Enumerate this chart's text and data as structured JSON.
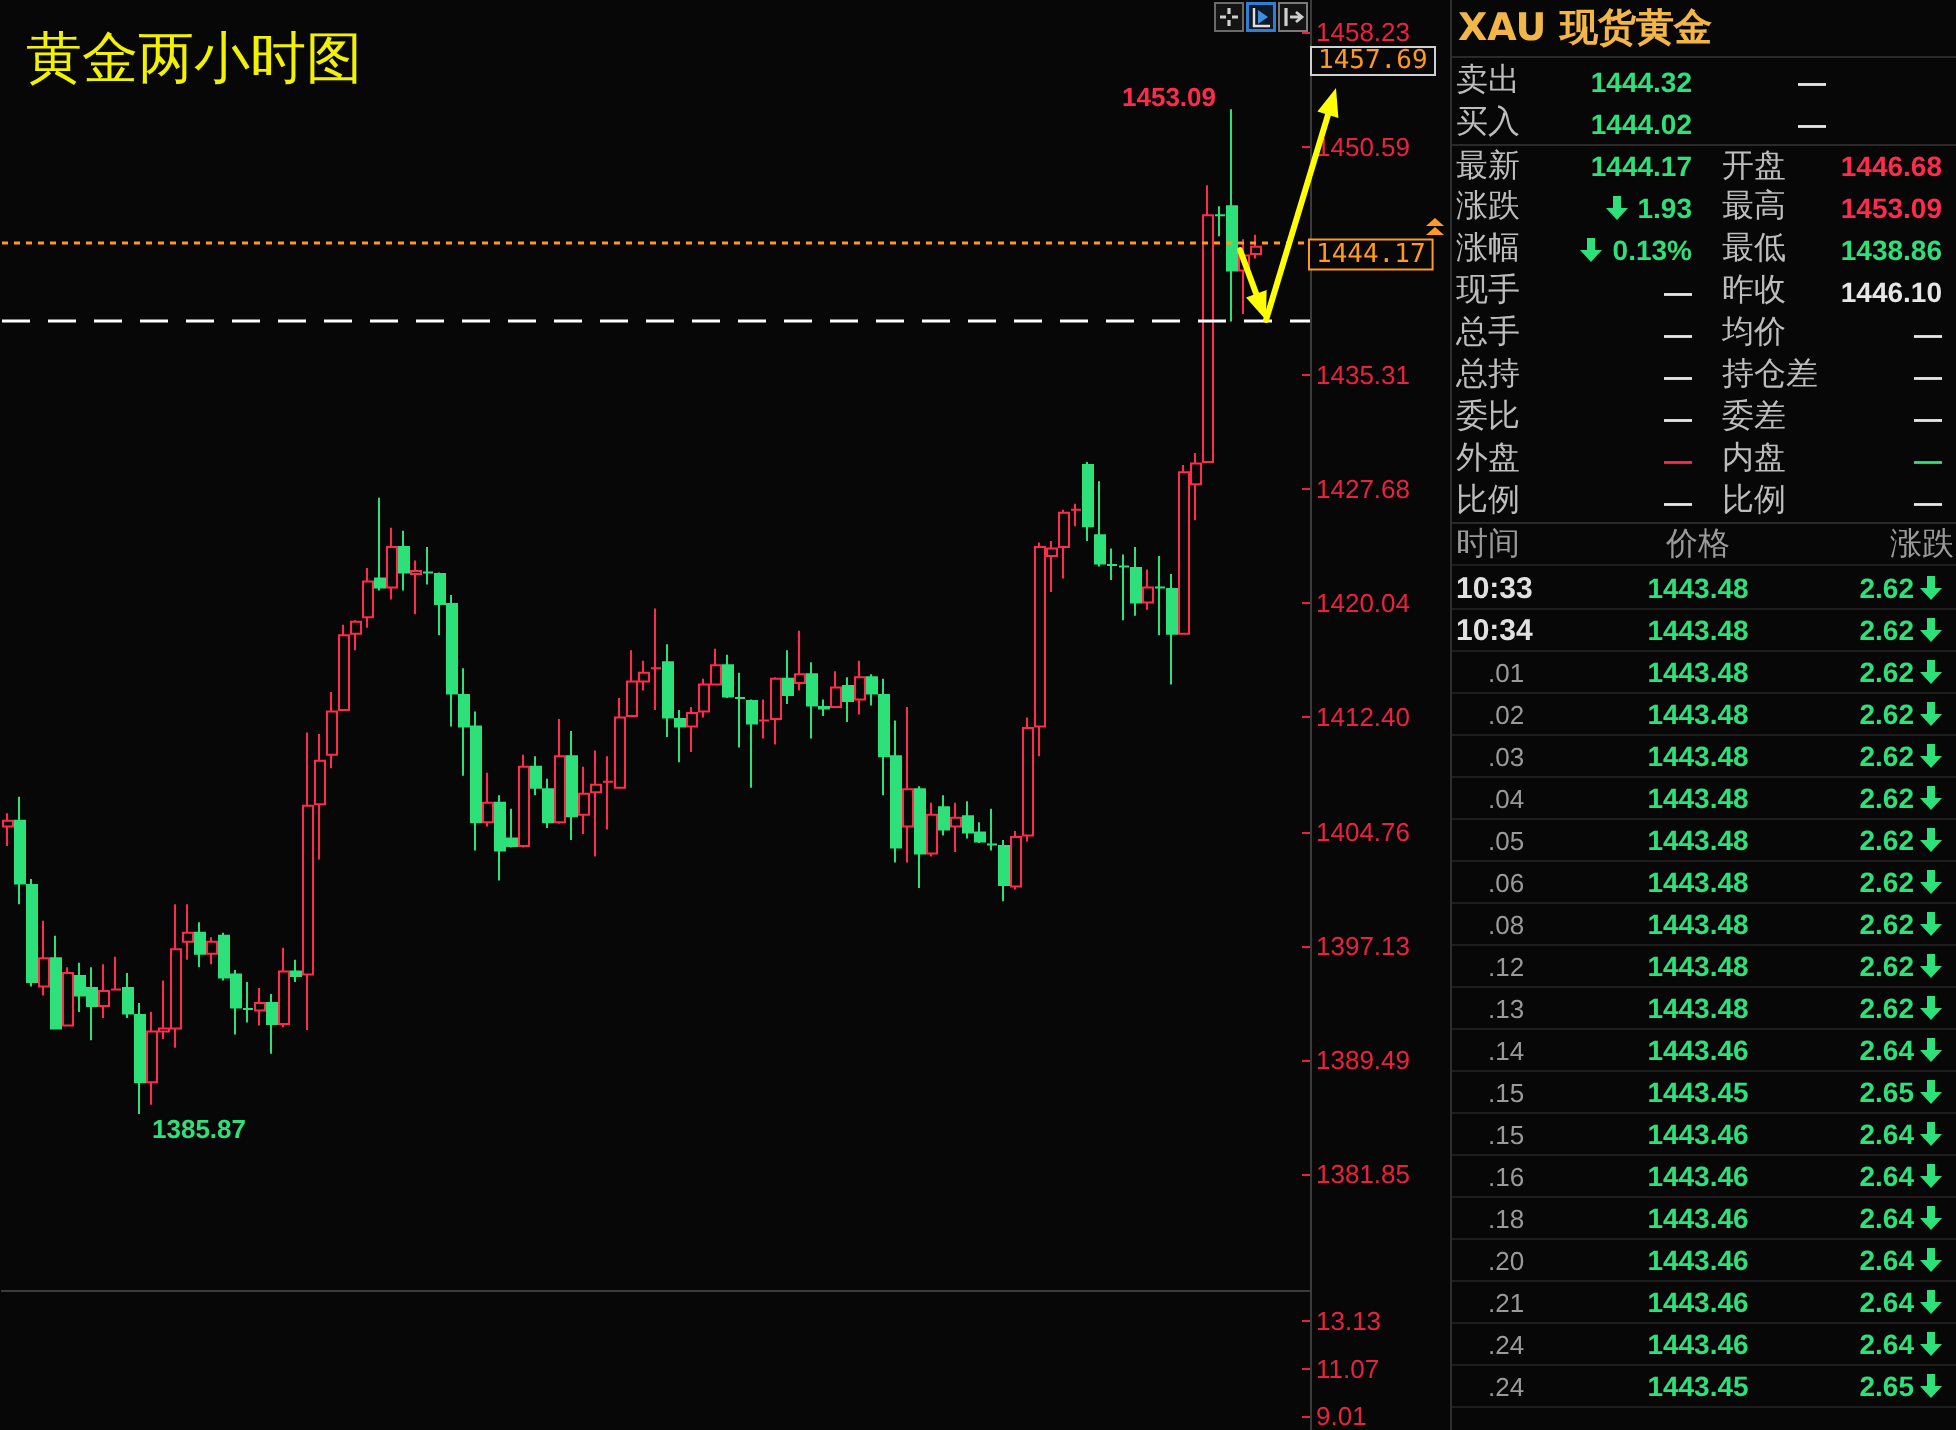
{
  "chart_data": [
    {
      "type": "candlestick",
      "title": "黄金两小时图",
      "tick_labels": "y",
      "categories": [
        null,
        null,
        null,
        null,
        null,
        null,
        null,
        null,
        null,
        null,
        null,
        null,
        null,
        null,
        null,
        null,
        null,
        null,
        null,
        null,
        null,
        null,
        null,
        null,
        null,
        null,
        null,
        null,
        null,
        null,
        null,
        null,
        null,
        null,
        null,
        null,
        null,
        null,
        null,
        null,
        null,
        null,
        null,
        null,
        null,
        null,
        null,
        null,
        null,
        null,
        null,
        null,
        null,
        null,
        null,
        null,
        null,
        null,
        null,
        null,
        null,
        null,
        null,
        null,
        null,
        null,
        null,
        null,
        null,
        null,
        null,
        null,
        null,
        null,
        null,
        null,
        null,
        null,
        null,
        null,
        null,
        null,
        null,
        null,
        null,
        null,
        null,
        null,
        null,
        null,
        null,
        null,
        null,
        null,
        null,
        null,
        null,
        null,
        null,
        null,
        null,
        null,
        null,
        null,
        null
      ],
      "ohlc": [
        [
          1405.1,
          1406.0,
          1403.8,
          1405.5
        ],
        [
          1405.5,
          1407.1,
          1399.9,
          1401.3
        ],
        [
          1401.2,
          1401.6,
          1394.4,
          1394.7
        ],
        [
          1394.4,
          1398.8,
          1393.8,
          1396.3
        ],
        [
          1396.3,
          1397.8,
          1391.6,
          1391.6
        ],
        [
          1391.8,
          1395.7,
          1391.8,
          1395.3
        ],
        [
          1395.1,
          1396.0,
          1392.7,
          1393.8
        ],
        [
          1394.3,
          1395.7,
          1390.8,
          1393.1
        ],
        [
          1393.1,
          1395.9,
          1392.3,
          1394.1
        ],
        [
          1394.2,
          1396.4,
          1394.2,
          1394.2
        ],
        [
          1394.3,
          1395.3,
          1392.3,
          1392.6
        ],
        [
          1392.5,
          1393.3,
          1385.87,
          1388.0
        ],
        [
          1388.0,
          1392.7,
          1386.5,
          1391.4
        ],
        [
          1391.4,
          1394.8,
          1390.9,
          1391.6
        ],
        [
          1391.6,
          1399.9,
          1390.3,
          1396.9
        ],
        [
          1397.4,
          1399.9,
          1396.2,
          1398.0
        ],
        [
          1398.0,
          1398.7,
          1395.7,
          1396.6
        ],
        [
          1396.6,
          1397.7,
          1395.9,
          1397.4
        ],
        [
          1397.8,
          1398.0,
          1394.8,
          1395.0
        ],
        [
          1395.2,
          1395.5,
          1391.2,
          1393.0
        ],
        [
          1392.9,
          1394.7,
          1392.0,
          1392.9
        ],
        [
          1392.8,
          1394.3,
          1391.8,
          1393.3
        ],
        [
          1393.3,
          1393.9,
          1389.9,
          1391.9
        ],
        [
          1391.9,
          1397.0,
          1391.7,
          1395.4
        ],
        [
          1395.4,
          1396.2,
          1394.7,
          1395.1
        ],
        [
          1395.2,
          1411.4,
          1391.5,
          1406.5
        ],
        [
          1406.6,
          1411.3,
          1402.9,
          1409.5
        ],
        [
          1409.9,
          1414.1,
          1409.0,
          1412.8
        ],
        [
          1412.9,
          1418.6,
          1412.9,
          1417.9
        ],
        [
          1418.0,
          1418.9,
          1416.9,
          1418.8
        ],
        [
          1419.1,
          1422.4,
          1418.4,
          1421.5
        ],
        [
          1421.7,
          1427.1,
          1420.9,
          1421.1
        ],
        [
          1421.1,
          1425.1,
          1420.3,
          1423.8
        ],
        [
          1423.8,
          1424.9,
          1420.9,
          1422.1
        ],
        [
          1422.0,
          1422.9,
          1419.3,
          1422.2
        ],
        [
          1422.1,
          1423.8,
          1421.3,
          1422.1
        ],
        [
          1422.0,
          1422.1,
          1417.9,
          1420.0
        ],
        [
          1420.0,
          1420.6,
          1411.8,
          1414.0
        ],
        [
          1413.9,
          1415.7,
          1408.5,
          1411.8
        ],
        [
          1411.8,
          1412.8,
          1403.5,
          1405.4
        ],
        [
          1405.4,
          1408.7,
          1405.1,
          1406.7
        ],
        [
          1406.7,
          1407.2,
          1401.5,
          1403.5
        ],
        [
          1404.3,
          1406.3,
          1403.7,
          1403.8
        ],
        [
          1403.8,
          1409.9,
          1403.7,
          1409.1
        ],
        [
          1409.1,
          1409.8,
          1407.2,
          1407.7
        ],
        [
          1407.6,
          1408.3,
          1405.0,
          1405.4
        ],
        [
          1405.4,
          1412.3,
          1405.3,
          1409.8
        ],
        [
          1409.8,
          1411.5,
          1404.2,
          1405.8
        ],
        [
          1405.9,
          1409.1,
          1404.6,
          1407.3
        ],
        [
          1407.4,
          1410.2,
          1403.1,
          1407.9
        ],
        [
          1408.1,
          1409.8,
          1404.9,
          1408.1
        ],
        [
          1407.7,
          1413.7,
          1407.7,
          1412.4
        ],
        [
          1412.5,
          1416.9,
          1412.5,
          1414.8
        ],
        [
          1414.8,
          1416.2,
          1414.2,
          1415.4
        ],
        [
          1415.7,
          1419.7,
          1412.9,
          1415.7
        ],
        [
          1416.1,
          1417.3,
          1411.1,
          1412.4
        ],
        [
          1412.3,
          1412.9,
          1409.4,
          1411.8
        ],
        [
          1411.8,
          1413.1,
          1410.1,
          1412.7
        ],
        [
          1412.8,
          1415.0,
          1412.4,
          1414.6
        ],
        [
          1414.6,
          1417.0,
          1414.6,
          1415.9
        ],
        [
          1415.9,
          1416.6,
          1413.7,
          1413.8
        ],
        [
          1413.7,
          1415.4,
          1410.4,
          1413.7
        ],
        [
          1413.5,
          1413.6,
          1407.7,
          1412.0
        ],
        [
          1412.2,
          1413.6,
          1411.0,
          1412.2
        ],
        [
          1412.3,
          1415.1,
          1410.6,
          1415.0
        ],
        [
          1415.0,
          1416.9,
          1413.3,
          1413.9
        ],
        [
          1414.7,
          1418.2,
          1414.2,
          1415.3
        ],
        [
          1415.3,
          1416.1,
          1411.0,
          1413.2
        ],
        [
          1413.1,
          1413.6,
          1412.5,
          1413.0
        ],
        [
          1413.1,
          1415.5,
          1413.1,
          1414.4
        ],
        [
          1414.5,
          1415.1,
          1412.1,
          1413.5
        ],
        [
          1413.6,
          1416.2,
          1412.6,
          1415.1
        ],
        [
          1415.1,
          1415.3,
          1413.2,
          1414.0
        ],
        [
          1413.9,
          1415.0,
          1407.2,
          1409.8
        ],
        [
          1409.8,
          1412.2,
          1402.7,
          1403.7
        ],
        [
          1405.1,
          1413.1,
          1402.7,
          1407.6
        ],
        [
          1407.6,
          1407.8,
          1401.0,
          1403.3
        ],
        [
          1403.3,
          1406.7,
          1403.1,
          1405.9
        ],
        [
          1406.4,
          1407.2,
          1404.5,
          1404.9
        ],
        [
          1405.1,
          1406.7,
          1403.4,
          1405.7
        ],
        [
          1405.8,
          1406.8,
          1404.3,
          1404.7
        ],
        [
          1404.7,
          1405.4,
          1404.0,
          1404.1
        ],
        [
          1403.9,
          1406.3,
          1403.5,
          1403.9
        ],
        [
          1403.8,
          1404.2,
          1400.1,
          1401.2
        ],
        [
          1401.1,
          1404.8,
          1400.9,
          1404.4
        ],
        [
          1404.5,
          1412.4,
          1404.1,
          1411.7
        ],
        [
          1411.8,
          1424.1,
          1409.8,
          1423.8
        ],
        [
          1423.2,
          1424.2,
          1420.8,
          1423.7
        ],
        [
          1423.8,
          1426.3,
          1421.7,
          1426.1
        ],
        [
          1426.3,
          1426.7,
          1425.2,
          1426.3
        ],
        [
          1429.3,
          1429.5,
          1424.2,
          1425.2
        ],
        [
          1424.6,
          1428.2,
          1422.5,
          1422.7
        ],
        [
          1422.6,
          1423.7,
          1421.6,
          1422.6
        ],
        [
          1422.5,
          1423.3,
          1418.9,
          1422.5
        ],
        [
          1422.4,
          1423.8,
          1419.2,
          1420.1
        ],
        [
          1420.1,
          1422.3,
          1419.6,
          1421.1
        ],
        [
          1421.1,
          1423.2,
          1417.9,
          1421.1
        ],
        [
          1421.0,
          1422.0,
          1414.6,
          1418.0
        ],
        [
          1418.0,
          1429.3,
          1418.0,
          1428.8
        ],
        [
          1428.0,
          1430.1,
          1425.6,
          1429.4
        ],
        [
          1429.5,
          1448.0,
          1429.5,
          1446.0
        ],
        [
          1446.0,
          1446.6,
          1444.6,
          1446.0
        ],
        [
          1446.6,
          1453.09,
          1438.9,
          1442.3
        ],
        [
          1442.3,
          1444.4,
          1439.4,
          1443.3
        ],
        [
          1443.4,
          1444.7,
          1443.1,
          1443.9
        ]
      ],
      "colors": [
        "#ff2a4d",
        "#2de07a",
        "#2de07a",
        "#ff2a4d",
        "#2de07a",
        "#ff2a4d",
        "#2de07a",
        "#2de07a",
        "#ff2a4d",
        "#ff2a4d",
        "#2de07a",
        "#2de07a",
        "#ff2a4d",
        "#ff2a4d",
        "#ff2a4d",
        "#ff2a4d",
        "#2de07a",
        "#ff2a4d",
        "#2de07a",
        "#2de07a",
        "#2de07a",
        "#ff2a4d",
        "#2de07a",
        "#ff2a4d",
        "#2de07a",
        "#ff2a4d",
        "#ff2a4d",
        "#ff2a4d",
        "#ff2a4d",
        "#ff2a4d",
        "#ff2a4d",
        "#2de07a",
        "#ff2a4d",
        "#2de07a",
        "#ff2a4d",
        "#2de07a",
        "#2de07a",
        "#2de07a",
        "#2de07a",
        "#2de07a",
        "#ff2a4d",
        "#2de07a",
        "#2de07a",
        "#ff2a4d",
        "#2de07a",
        "#2de07a",
        "#ff2a4d",
        "#2de07a",
        "#ff2a4d",
        "#ff2a4d",
        "#ff2a4d",
        "#ff2a4d",
        "#ff2a4d",
        "#ff2a4d",
        "#ff2a4d",
        "#2de07a",
        "#2de07a",
        "#ff2a4d",
        "#ff2a4d",
        "#ff2a4d",
        "#2de07a",
        "#2de07a",
        "#2de07a",
        "#ff2a4d",
        "#ff2a4d",
        "#2de07a",
        "#ff2a4d",
        "#2de07a",
        "#2de07a",
        "#ff2a4d",
        "#2de07a",
        "#ff2a4d",
        "#2de07a",
        "#2de07a",
        "#2de07a",
        "#ff2a4d",
        "#2de07a",
        "#ff2a4d",
        "#2de07a",
        "#ff2a4d",
        "#2de07a",
        "#2de07a",
        "#2de07a",
        "#2de07a",
        "#ff2a4d",
        "#ff2a4d",
        "#ff2a4d",
        "#ff2a4d",
        "#ff2a4d",
        "#ff2a4d",
        "#2de07a",
        "#2de07a",
        "#2de07a",
        "#2de07a",
        "#2de07a",
        "#ff2a4d",
        "#2de07a",
        "#2de07a",
        "#ff2a4d",
        "#ff2a4d",
        "#ff2a4d",
        "#2de07a",
        "#2de07a",
        "#ff2a4d",
        "#ff2a4d"
      ],
      "ylim": [
        1374.1,
        1460.4
      ],
      "yticks": [
        1381.85,
        1389.49,
        1397.13,
        1404.76,
        {
          "value": 1412.4,
          "label": "1412.40"
        },
        1420.04,
        1427.68,
        1435.31,
        1450.59,
        1458.23
      ],
      "ref_lines": [
        {
          "axis": "y",
          "value": 1444.17,
          "label": "1444.17",
          "color": "#ff9a1f",
          "line_style": "dotted"
        },
        {
          "axis": "y",
          "value": 1439.0,
          "color": "#ffffff",
          "line_style": "dashed"
        }
      ],
      "annotations": [
        "1457.69",
        "1453.09",
        "1385.87"
      ]
    },
    {
      "type": "bar",
      "tick_labels": "y",
      "categories": [
        null,
        null,
        null,
        null,
        null,
        null,
        null,
        null,
        null,
        null,
        null,
        null,
        null,
        null,
        null,
        null,
        null,
        null,
        null,
        null,
        null,
        null,
        null,
        null,
        null,
        null,
        null,
        null,
        null,
        null,
        null,
        null,
        null,
        null,
        null,
        null,
        null,
        null,
        null,
        null,
        null,
        null,
        null,
        null,
        null,
        null,
        null,
        null,
        null,
        null,
        null,
        null,
        null,
        null,
        null,
        null,
        null,
        null,
        null,
        null,
        null,
        null,
        null,
        null,
        null,
        null,
        null,
        null,
        null,
        null,
        null,
        null,
        null,
        null,
        null,
        null,
        null,
        null,
        null,
        null,
        null,
        null,
        null,
        null,
        null,
        null,
        null,
        null,
        null,
        null,
        null,
        null,
        null,
        null,
        null,
        null,
        null,
        null,
        null,
        null,
        null,
        null,
        null,
        null,
        null
      ],
      "values": [
        null,
        null,
        null,
        null,
        null,
        null,
        null,
        null,
        null,
        null,
        null,
        null,
        null,
        null,
        null,
        null,
        null,
        null,
        null,
        null,
        null,
        null,
        null,
        null,
        null,
        null,
        null,
        null,
        null,
        null,
        null,
        null,
        null,
        null,
        null,
        null,
        null,
        null,
        null,
        null,
        null,
        null,
        null,
        null,
        null,
        null,
        null,
        null,
        null,
        null,
        null,
        null,
        null,
        null,
        null,
        null,
        null,
        null,
        null,
        null,
        null,
        null,
        null,
        null,
        null,
        null,
        null,
        null,
        null,
        null,
        null,
        null,
        null,
        null,
        null,
        null,
        null,
        null,
        null,
        null,
        null,
        null,
        null,
        null,
        null,
        null,
        null,
        null,
        null,
        null,
        null,
        null,
        null,
        null,
        null,
        null,
        null,
        null,
        null,
        null,
        null,
        null,
        null,
        null,
        null
      ],
      "ylim": [
        8.4,
        14.5
      ],
      "yticks": [
        9.01,
        11.07,
        13.13
      ]
    },
    {
      "type": "other",
      "title": "XAU 现货黄金",
      "annotations": [
        "卖出",
        "1444.32",
        "—",
        "买入",
        "1444.02",
        "—",
        "最新",
        "1444.17",
        "开盘",
        "1446.68",
        "涨跌",
        "1.93",
        "最高",
        "1453.09",
        "涨幅",
        "0.13%",
        "最低",
        "1438.86",
        "现手",
        "—",
        "昨收",
        "1446.10",
        "总手",
        "—",
        "均价",
        "—",
        "总持",
        "—",
        "持仓差",
        "—",
        "委比",
        "—",
        "委差",
        "—",
        "外盘",
        "—",
        "内盘",
        "—",
        "比例",
        "—",
        "比例",
        "—"
      ]
    },
    {
      "type": "other",
      "annotations": [
        "时间",
        "价格",
        "涨跌",
        "10:33",
        "1443.48",
        "2.62",
        "10:34",
        "1443.48",
        "2.62",
        ".01",
        "1443.48",
        "2.62",
        ".02",
        "1443.48",
        "2.62",
        ".03",
        "1443.48",
        "2.62",
        ".04",
        "1443.48",
        "2.62",
        ".05",
        "1443.48",
        "2.62",
        ".06",
        "1443.48",
        "2.62",
        ".08",
        "1443.48",
        "2.62",
        ".12",
        "1443.48",
        "2.62",
        ".13",
        "1443.48",
        "2.62",
        ".14",
        "1443.46",
        "2.64",
        ".15",
        "1443.45",
        "2.65",
        ".15",
        "1443.46",
        "2.64",
        ".16",
        "1443.46",
        "2.64",
        ".18",
        "1443.46",
        "2.64",
        ".20",
        "1443.46",
        "2.64",
        ".21",
        "1443.46",
        "2.64",
        ".24",
        "1443.46",
        "2.64",
        ".24",
        "1443.45",
        "2.65"
      ]
    }
  ]
}
